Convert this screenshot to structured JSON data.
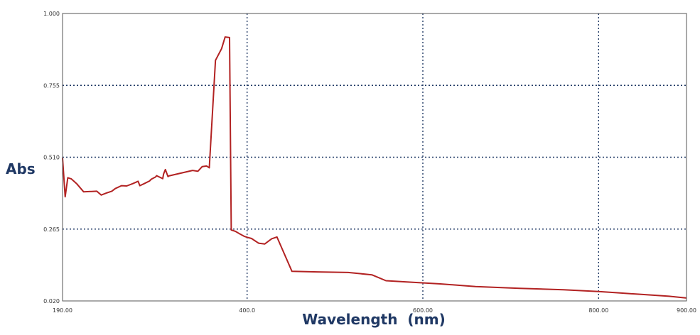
{
  "chart_data": {
    "type": "line",
    "xlabel": "Wavelength  (nm)",
    "ylabel": "Abs",
    "xlim": [
      190,
      900
    ],
    "ylim": [
      0.02,
      1.0
    ],
    "x_ticks": [
      190,
      400,
      600,
      800,
      900
    ],
    "x_tick_labels": [
      "190.00",
      "400.0",
      "600.00",
      "800.00",
      "900.00"
    ],
    "y_ticks": [
      0.02,
      0.265,
      0.51,
      0.755,
      1.0
    ],
    "y_tick_labels": [
      "0.020",
      "0.265",
      "0.510",
      "0.755",
      "1.000"
    ],
    "grid": true,
    "colors": {
      "line": "#b22222",
      "grid": "#1f3864",
      "axis_title": "#1f3864"
    },
    "series": [
      {
        "x": [
          190,
          193,
          196,
          200,
          206,
          214,
          220,
          229,
          234,
          240,
          246,
          250,
          257,
          263,
          270,
          276,
          278,
          283,
          289,
          291,
          296,
          297,
          304,
          305,
          307,
          310,
          311,
          338,
          344,
          349,
          354,
          357,
          364,
          371,
          375,
          380,
          382,
          387,
          392,
          397,
          400,
          405,
          413,
          420,
          428,
          434,
          451,
          480,
          515,
          542,
          558,
          580,
          620,
          660,
          710,
          760,
          800,
          820,
          850,
          880,
          900
        ],
        "y": [
          0.508,
          0.375,
          0.44,
          0.436,
          0.42,
          0.392,
          0.393,
          0.394,
          0.381,
          0.388,
          0.394,
          0.403,
          0.413,
          0.412,
          0.42,
          0.428,
          0.413,
          0.42,
          0.429,
          0.435,
          0.443,
          0.447,
          0.437,
          0.453,
          0.468,
          0.444,
          0.446,
          0.465,
          0.462,
          0.478,
          0.48,
          0.474,
          0.84,
          0.88,
          0.92,
          0.918,
          0.262,
          0.257,
          0.248,
          0.24,
          0.237,
          0.233,
          0.217,
          0.214,
          0.232,
          0.238,
          0.121,
          0.119,
          0.117,
          0.109,
          0.089,
          0.085,
          0.078,
          0.069,
          0.063,
          0.058,
          0.052,
          0.048,
          0.042,
          0.036,
          0.03
        ]
      }
    ]
  }
}
